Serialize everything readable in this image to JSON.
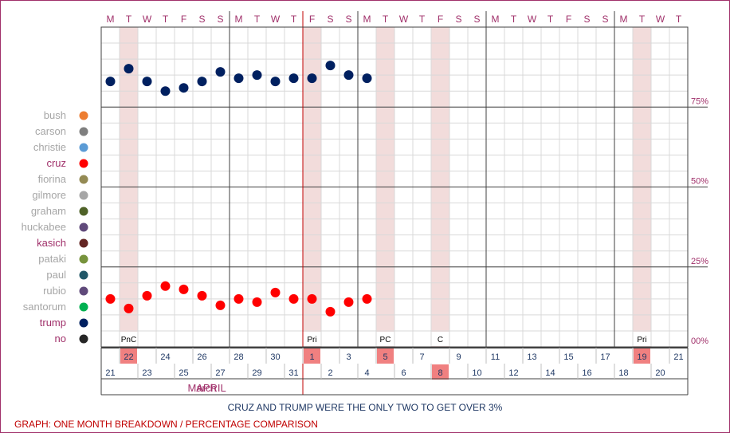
{
  "chart_data": {
    "type": "scatter",
    "title": "",
    "caption": "CRUZ AND TRUMP WERE THE ONLY TWO TO GET OVER 3%",
    "footer": "GRAPH: ONE MONTH BREAKDOWN / PERCENTAGE COMPARISON",
    "ylim": [
      0,
      100
    ],
    "y_ticks": [
      "00%",
      "25%",
      "50%",
      "75%"
    ],
    "grid": true,
    "weekdays": [
      "M",
      "T",
      "W",
      "T",
      "F",
      "S",
      "S",
      "M",
      "T",
      "W",
      "T",
      "F",
      "S",
      "S",
      "M",
      "T",
      "W",
      "T",
      "F",
      "S",
      "S",
      "M",
      "T",
      "W",
      "T",
      "F",
      "S",
      "S",
      "M",
      "T",
      "W",
      "T"
    ],
    "dates": [
      "21",
      "22",
      "23",
      "24",
      "25",
      "26",
      "27",
      "28",
      "29",
      "30",
      "31",
      "1",
      "2",
      "3",
      "4",
      "5",
      "6",
      "7",
      "8",
      "9",
      "10",
      "11",
      "12",
      "13",
      "14",
      "15",
      "16",
      "17",
      "18",
      "19",
      "20",
      "21"
    ],
    "months": [
      {
        "label": "March",
        "start": "21",
        "end": "31"
      },
      {
        "label": "APRIL",
        "start": "1",
        "end": "21"
      }
    ],
    "highlighted_dates": [
      "22",
      "1",
      "5",
      "8",
      "19"
    ],
    "events": [
      {
        "date": "22",
        "label": "PnC"
      },
      {
        "date": "1",
        "label": "Pri"
      },
      {
        "date": "5",
        "label": "PC"
      },
      {
        "date": "8",
        "label": "C"
      },
      {
        "date": "19",
        "label": "Pri"
      }
    ],
    "legend": [
      {
        "name": "bush",
        "color": "#ed7d31"
      },
      {
        "name": "carson",
        "color": "#7f7f7f"
      },
      {
        "name": "christie",
        "color": "#5b9bd5"
      },
      {
        "name": "cruz",
        "color": "#ff0000"
      },
      {
        "name": "fiorina",
        "color": "#948a54"
      },
      {
        "name": "gilmore",
        "color": "#a6a6a6"
      },
      {
        "name": "graham",
        "color": "#4f6228"
      },
      {
        "name": "huckabee",
        "color": "#604a7b"
      },
      {
        "name": "kasich",
        "color": "#632523"
      },
      {
        "name": "pataki",
        "color": "#77933c"
      },
      {
        "name": "paul",
        "color": "#215868"
      },
      {
        "name": "rubio",
        "color": "#5f497a"
      },
      {
        "name": "santorum",
        "color": "#00b050"
      },
      {
        "name": "trump",
        "color": "#002060"
      },
      {
        "name": "no",
        "color": "#262626"
      }
    ],
    "series": [
      {
        "name": "trump",
        "color": "#002060",
        "x": [
          "21",
          "22",
          "23",
          "24",
          "25",
          "26",
          "27",
          "28",
          "29",
          "30",
          "31",
          "1",
          "2",
          "3",
          "4"
        ],
        "values": [
          83,
          87,
          83,
          80,
          81,
          83,
          86,
          84,
          85,
          83,
          84,
          84,
          88,
          85,
          84
        ]
      },
      {
        "name": "cruz",
        "color": "#ff0000",
        "x": [
          "21",
          "22",
          "23",
          "24",
          "25",
          "26",
          "27",
          "28",
          "29",
          "30",
          "31",
          "1",
          "2",
          "3",
          "4"
        ],
        "values": [
          15,
          12,
          16,
          19,
          18,
          16,
          13,
          15,
          14,
          17,
          15,
          15,
          11,
          14,
          15
        ]
      }
    ]
  }
}
